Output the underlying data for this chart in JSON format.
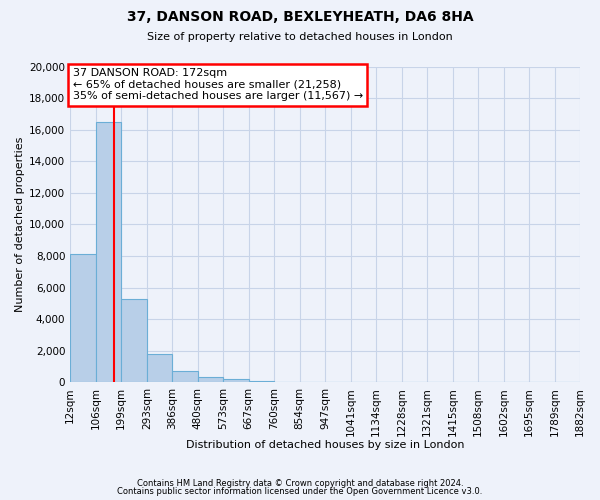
{
  "title": "37, DANSON ROAD, BEXLEYHEATH, DA6 8HA",
  "subtitle": "Size of property relative to detached houses in London",
  "xlabel": "Distribution of detached houses by size in London",
  "ylabel": "Number of detached properties",
  "bar_values": [
    8100,
    16500,
    5300,
    1800,
    700,
    300,
    200,
    100,
    0,
    0,
    0,
    0,
    0,
    0,
    0,
    0,
    0,
    0,
    0,
    0
  ],
  "bin_edges": [
    12,
    106,
    199,
    293,
    386,
    480,
    573,
    667,
    760,
    854,
    947,
    1041,
    1134,
    1228,
    1321,
    1415,
    1508,
    1602,
    1695,
    1789,
    1882
  ],
  "bin_labels": [
    "12sqm",
    "106sqm",
    "199sqm",
    "293sqm",
    "386sqm",
    "480sqm",
    "573sqm",
    "667sqm",
    "760sqm",
    "854sqm",
    "947sqm",
    "1041sqm",
    "1134sqm",
    "1228sqm",
    "1321sqm",
    "1415sqm",
    "1508sqm",
    "1602sqm",
    "1695sqm",
    "1789sqm",
    "1882sqm"
  ],
  "bar_color": "#b8cfe8",
  "bar_edge_color": "#6baed6",
  "property_line_x": 172,
  "property_line_color": "red",
  "annotation_title": "37 DANSON ROAD: 172sqm",
  "annotation_line1": "← 65% of detached houses are smaller (21,258)",
  "annotation_line2": "35% of semi-detached houses are larger (11,567) →",
  "annotation_box_color": "white",
  "annotation_box_edge_color": "red",
  "ylim": [
    0,
    20000
  ],
  "yticks": [
    0,
    2000,
    4000,
    6000,
    8000,
    10000,
    12000,
    14000,
    16000,
    18000,
    20000
  ],
  "footer1": "Contains HM Land Registry data © Crown copyright and database right 2024.",
  "footer2": "Contains public sector information licensed under the Open Government Licence v3.0.",
  "background_color": "#eef2fa",
  "grid_color": "#c8d4e8",
  "figsize": [
    6.0,
    5.0
  ],
  "dpi": 100
}
